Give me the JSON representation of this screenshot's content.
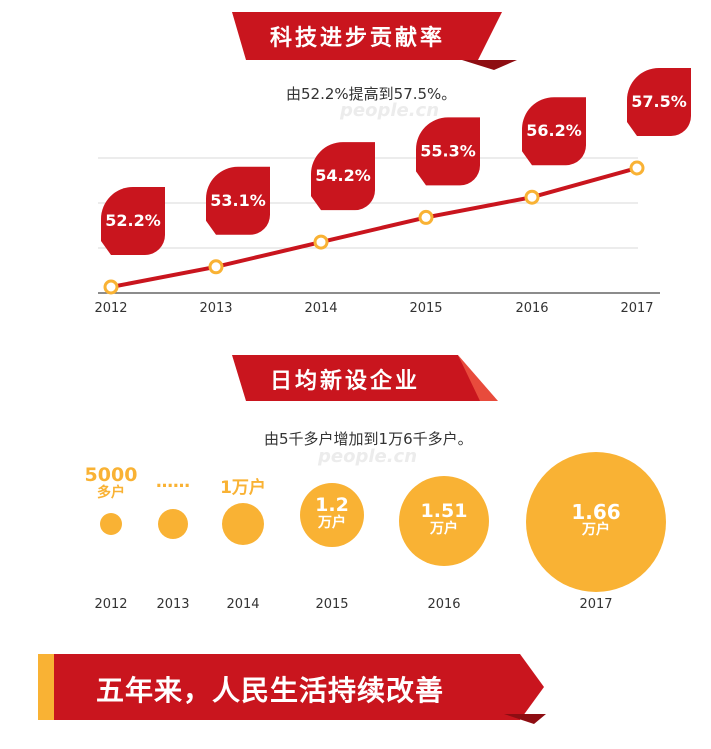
{
  "colors": {
    "red": "#c9151e",
    "dark_red": "#8e0d12",
    "orange": "#f9b234",
    "grid": "#d9d9d9"
  },
  "section1": {
    "title": "科技进步贡献率",
    "subtitle": "由52.2%提高到57.5%。"
  },
  "section2": {
    "title": "日均新设企业",
    "subtitle": "由5千多户增加到1万6千多户。"
  },
  "section3": {
    "title": "五年来，人民生活持续改善"
  },
  "watermark": "people.cn",
  "chart_data": [
    {
      "type": "line",
      "title": "科技进步贡献率",
      "x": [
        "2012",
        "2013",
        "2014",
        "2015",
        "2016",
        "2017"
      ],
      "series": [
        {
          "values": [
            52.2,
            53.1,
            54.2,
            55.3,
            56.2,
            57.5
          ]
        }
      ],
      "data_labels": [
        "52.2%",
        "53.1%",
        "54.2%",
        "55.3%",
        "56.2%",
        "57.5%"
      ],
      "ylim": [
        51,
        59
      ],
      "grid": true
    },
    {
      "type": "scatter",
      "title": "日均新设企业",
      "x": [
        "2012",
        "2013",
        "2014",
        "2015",
        "2016",
        "2017"
      ],
      "values": [
        0.5,
        0.7,
        1.0,
        1.2,
        1.51,
        1.66
      ],
      "unit": "万户",
      "value_labels": [
        {
          "line1": "5000",
          "line2": "多户"
        },
        {
          "line1": "……",
          "line2": ""
        },
        {
          "line1": "1万户",
          "line2": ""
        },
        {
          "line1": "1.2",
          "line2": "万户"
        },
        {
          "line1": "1.51",
          "line2": "万户"
        },
        {
          "line1": "1.66",
          "line2": "万户"
        }
      ]
    }
  ]
}
